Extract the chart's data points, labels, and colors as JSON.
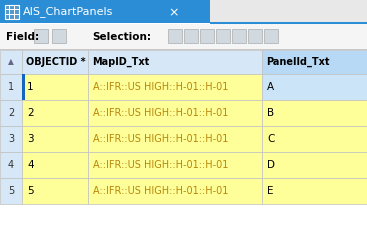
{
  "title_text": "AIS_ChartPanels",
  "title_bg": "#2b8dd6",
  "title_fg": "#ffffff",
  "tab_bg": "#e8e8e8",
  "toolbar_bg": "#f5f5f5",
  "header_bg": "#d6e8f7",
  "header_fg": "#000000",
  "panel_header_bg": "#b8d9f5",
  "row_bg_yellow": "#ffff99",
  "row_bg_blue_light": "#cce4f7",
  "row_fg_yellow": "#b8860b",
  "row_num_bg": "#e8eef4",
  "grid_line_color": "#c0c0c0",
  "blue_sel_border": "#1565c0",
  "rows": [
    {
      "num": 1,
      "id": "1",
      "map": "A::IFR::US HIGH::H-01::H-01",
      "panel": "A",
      "panel_bg": "#cce4f7"
    },
    {
      "num": 2,
      "id": "2",
      "map": "A::IFR::US HIGH::H-01::H-01",
      "panel": "B",
      "panel_bg": "#ffff99"
    },
    {
      "num": 3,
      "id": "3",
      "map": "A::IFR::US HIGH::H-01::H-01",
      "panel": "C",
      "panel_bg": "#ffff99"
    },
    {
      "num": 4,
      "id": "4",
      "map": "A::IFR::US HIGH::H-01::H-01",
      "panel": "D",
      "panel_bg": "#ffff99"
    },
    {
      "num": 5,
      "id": "5",
      "map": "A::IFR::US HIGH::H-01::H-01",
      "panel": "E",
      "panel_bg": "#ffff99"
    }
  ],
  "figsize": [
    3.67,
    2.34
  ],
  "dpi": 100
}
